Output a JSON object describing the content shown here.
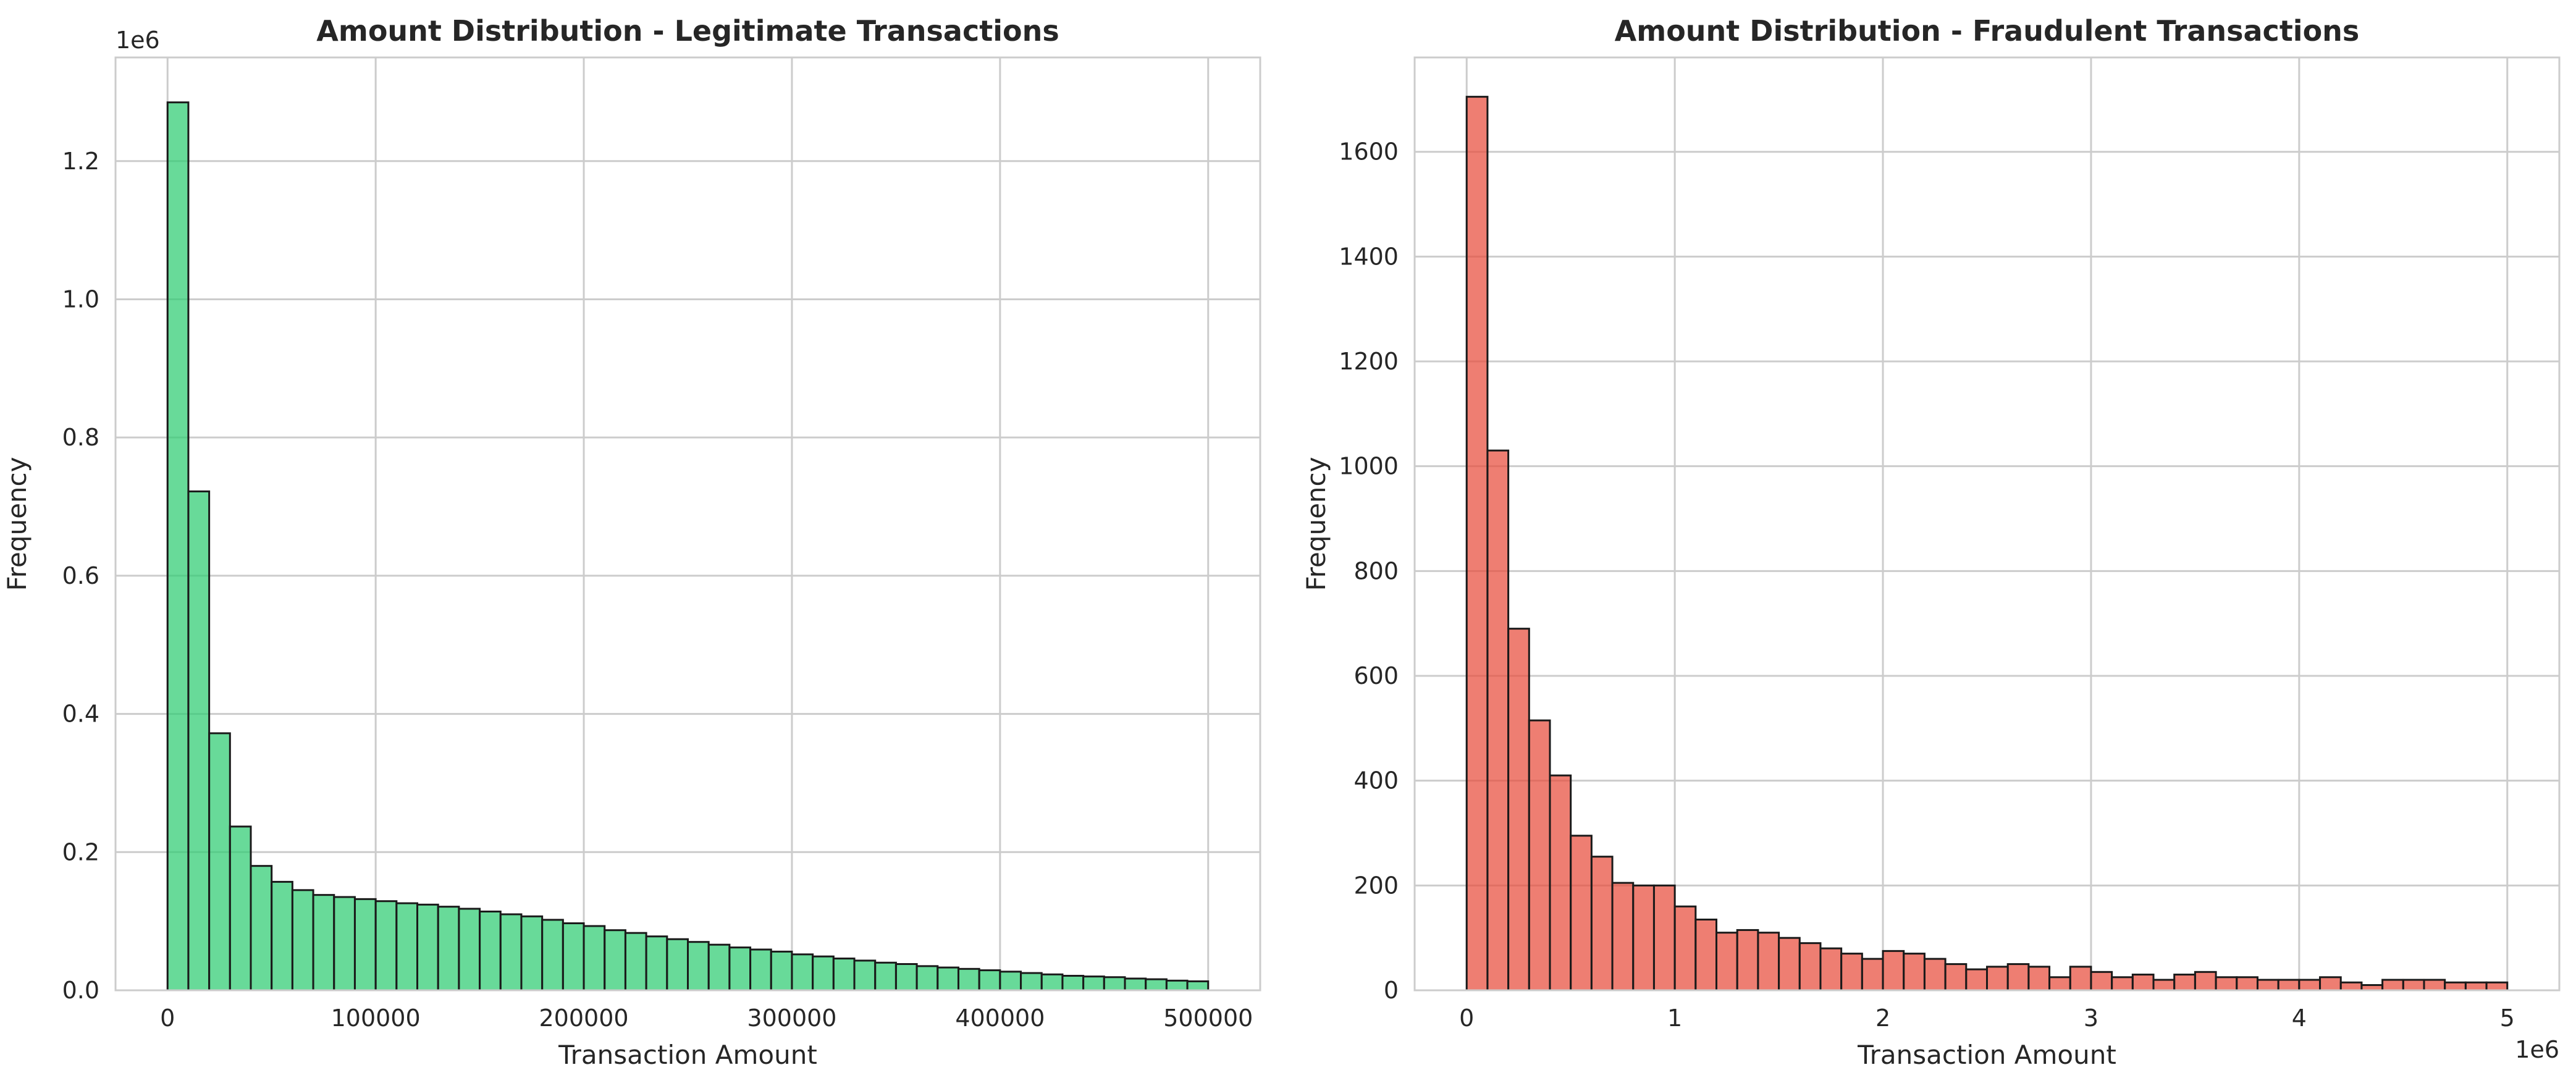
{
  "chart_data": [
    {
      "type": "bar",
      "title": "Amount Distribution - Legitimate Transactions",
      "xlabel": "Transaction Amount",
      "ylabel": "Frequency",
      "y_offset_label": "1e6",
      "x_offset_label": "",
      "color": "#2ecc71",
      "edge_color": "#1a1a1a",
      "grid": true,
      "xlim": [
        -25000,
        525000
      ],
      "ylim": [
        0,
        1350000
      ],
      "xticks": [
        0,
        100000,
        200000,
        300000,
        400000,
        500000
      ],
      "xtick_labels": [
        "0",
        "100000",
        "200000",
        "300000",
        "400000",
        "500000"
      ],
      "yticks": [
        0,
        200000,
        400000,
        600000,
        800000,
        1000000,
        1200000
      ],
      "ytick_labels": [
        "0.0",
        "0.2",
        "0.4",
        "0.6",
        "0.8",
        "1.0",
        "1.2"
      ],
      "bin_start": 0,
      "bin_width": 10000,
      "values": [
        1285000,
        722000,
        372000,
        237000,
        180000,
        157000,
        145000,
        138000,
        135000,
        132000,
        129000,
        126000,
        124000,
        121000,
        118000,
        114000,
        110000,
        107000,
        102000,
        97000,
        93000,
        87000,
        83000,
        78000,
        74000,
        70000,
        66000,
        62000,
        59000,
        56000,
        52000,
        49000,
        46000,
        43000,
        40000,
        38000,
        35000,
        33000,
        31000,
        29000,
        27000,
        25000,
        23000,
        21000,
        20000,
        19000,
        17000,
        16000,
        14000,
        13000
      ]
    },
    {
      "type": "bar",
      "title": "Amount Distribution - Fraudulent Transactions",
      "xlabel": "Transaction Amount",
      "ylabel": "Frequency",
      "y_offset_label": "",
      "x_offset_label": "1e6",
      "color": "#e74c3c",
      "edge_color": "#1a1a1a",
      "grid": true,
      "xlim": [
        -250000,
        5250000
      ],
      "ylim": [
        0,
        1780
      ],
      "xticks": [
        0,
        1000000,
        2000000,
        3000000,
        4000000,
        5000000
      ],
      "xtick_labels": [
        "0",
        "1",
        "2",
        "3",
        "4",
        "5"
      ],
      "yticks": [
        0,
        200,
        400,
        600,
        800,
        1000,
        1200,
        1400,
        1600
      ],
      "ytick_labels": [
        "0",
        "200",
        "400",
        "600",
        "800",
        "1000",
        "1200",
        "1400",
        "1600"
      ],
      "bin_start": 0,
      "bin_width": 100000,
      "values": [
        1705,
        1030,
        690,
        515,
        410,
        295,
        255,
        205,
        200,
        200,
        160,
        135,
        110,
        115,
        110,
        100,
        90,
        80,
        70,
        60,
        75,
        70,
        60,
        50,
        40,
        45,
        50,
        45,
        25,
        45,
        35,
        25,
        30,
        20,
        30,
        35,
        25,
        25,
        20,
        20,
        20,
        25,
        15,
        10,
        20,
        20,
        20,
        15,
        15,
        15
      ]
    }
  ]
}
